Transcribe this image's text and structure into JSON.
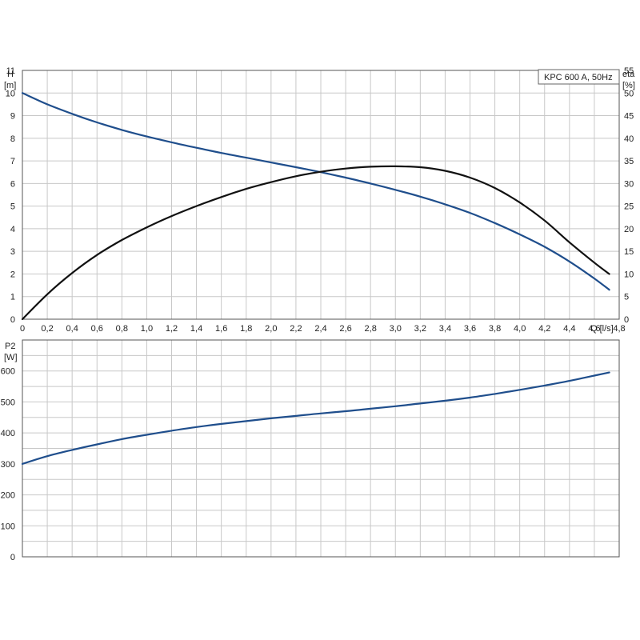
{
  "chart_data": [
    {
      "type": "line",
      "title": "KPC 600 A, 50Hz",
      "x_axis": {
        "unit_label": "Q [l/s]",
        "range": [
          0,
          4.8
        ],
        "tick_labels": [
          "0",
          "0,2",
          "0,4",
          "0,6",
          "0,8",
          "1,0",
          "1,2",
          "1,4",
          "1,6",
          "1,8",
          "2,0",
          "2,2",
          "2,4",
          "2,6",
          "2,8",
          "3,0",
          "3,2",
          "3,4",
          "3,6",
          "3,8",
          "4,0",
          "4,2",
          "4,4",
          "4,6",
          "4,8"
        ]
      },
      "y_left": {
        "label_top": "H",
        "label_unit": "[m]",
        "range": [
          0,
          11
        ],
        "tick_labels": [
          "0",
          "1",
          "2",
          "3",
          "4",
          "5",
          "6",
          "7",
          "8",
          "9",
          "10",
          "11"
        ]
      },
      "y_right": {
        "label_top": "eta",
        "label_unit": "[%]",
        "range": [
          0,
          55
        ],
        "tick_labels": [
          "0",
          "5",
          "10",
          "15",
          "20",
          "25",
          "30",
          "35",
          "40",
          "45",
          "50",
          "55"
        ]
      },
      "grid": true,
      "series": [
        {
          "axis": "left",
          "color": "#1f4e8c",
          "x": [
            0,
            0.2,
            0.4,
            0.6,
            0.8,
            1.0,
            1.2,
            1.4,
            1.6,
            1.8,
            2.0,
            2.2,
            2.4,
            2.6,
            2.8,
            3.0,
            3.2,
            3.4,
            3.6,
            3.8,
            4.0,
            4.2,
            4.4,
            4.6,
            4.72
          ],
          "values": [
            10.0,
            9.5,
            9.08,
            8.7,
            8.37,
            8.08,
            7.82,
            7.58,
            7.35,
            7.14,
            6.93,
            6.72,
            6.5,
            6.26,
            6.0,
            5.72,
            5.42,
            5.08,
            4.7,
            4.25,
            3.75,
            3.2,
            2.55,
            1.8,
            1.3
          ]
        },
        {
          "axis": "right",
          "color": "#111111",
          "x": [
            0,
            0.2,
            0.4,
            0.6,
            0.8,
            1.0,
            1.2,
            1.4,
            1.6,
            1.8,
            2.0,
            2.2,
            2.4,
            2.6,
            2.8,
            3.0,
            3.2,
            3.4,
            3.6,
            3.8,
            4.0,
            4.2,
            4.4,
            4.6,
            4.72
          ],
          "values": [
            0,
            5.5,
            10.2,
            14.2,
            17.5,
            20.3,
            22.8,
            25.0,
            27.0,
            28.8,
            30.3,
            31.6,
            32.6,
            33.3,
            33.7,
            33.8,
            33.6,
            32.8,
            31.3,
            29.0,
            25.8,
            21.8,
            17.0,
            12.5,
            10.0
          ]
        }
      ]
    },
    {
      "type": "line",
      "x_axis": {
        "range": [
          0,
          4.8
        ]
      },
      "y_left": {
        "label_top": "P2",
        "label_unit": "[W]",
        "range": [
          0,
          700
        ],
        "tick_labels": [
          "0",
          "100",
          "200",
          "300",
          "400",
          "500",
          "600"
        ],
        "tick_values": [
          0,
          100,
          200,
          300,
          400,
          500,
          600
        ]
      },
      "grid": true,
      "series": [
        {
          "axis": "left",
          "color": "#1f4e8c",
          "x": [
            0,
            0.2,
            0.4,
            0.6,
            0.8,
            1.0,
            1.2,
            1.4,
            1.6,
            1.8,
            2.0,
            2.2,
            2.4,
            2.6,
            2.8,
            3.0,
            3.2,
            3.4,
            3.6,
            3.8,
            4.0,
            4.2,
            4.4,
            4.6,
            4.72
          ],
          "values": [
            300,
            325,
            345,
            363,
            380,
            394,
            407,
            419,
            429,
            438,
            447,
            455,
            463,
            470,
            478,
            486,
            495,
            504,
            514,
            526,
            539,
            553,
            568,
            585,
            595
          ]
        }
      ]
    }
  ]
}
